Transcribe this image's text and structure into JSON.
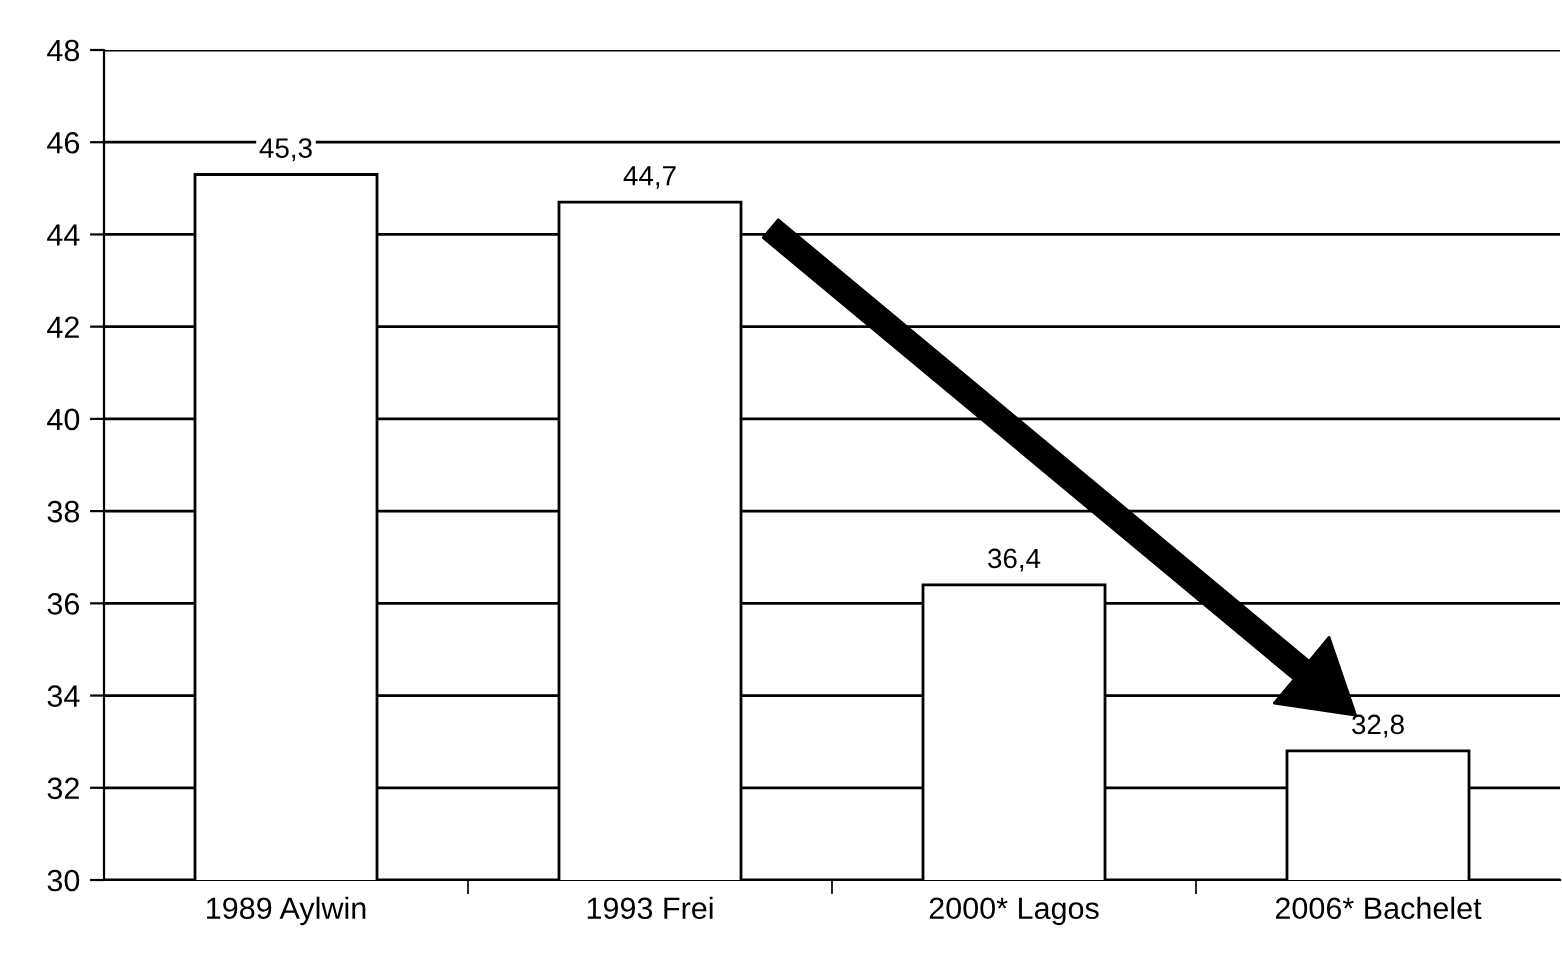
{
  "chart_data": {
    "type": "bar",
    "categories": [
      "1989 Aylwin",
      "1993 Frei",
      "2000* Lagos",
      "2006* Bachelet"
    ],
    "values": [
      45.3,
      44.7,
      36.4,
      32.8
    ],
    "value_labels": [
      "45,3",
      "44,7",
      "36,4",
      "32,8"
    ],
    "color": "#ffffff",
    "ylim": [
      30,
      48
    ],
    "yticks": [
      30,
      32,
      34,
      36,
      38,
      40,
      42,
      44,
      46,
      48
    ],
    "grid": "y"
  }
}
